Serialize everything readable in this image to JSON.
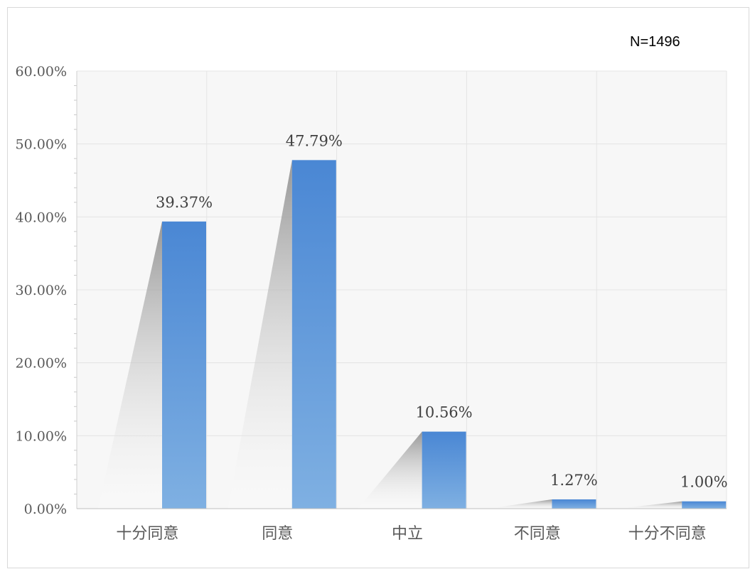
{
  "colors": {
    "bar_top": "#4a87d4",
    "bar_bottom": "#7fb0e2",
    "plot_background": "#f7f7f7",
    "grid": "#e4e4e4",
    "axis_text": "#595959",
    "label_text": "#404040"
  },
  "chart_data": {
    "type": "bar",
    "annotation": "N=1496",
    "categories": [
      "十分同意",
      "同意",
      "中立",
      "不同意",
      "十分不同意"
    ],
    "values": [
      39.37,
      47.79,
      10.56,
      1.27,
      1.0
    ],
    "data_labels": [
      "39.37%",
      "47.79%",
      "10.56%",
      "1.27%",
      "1.00%"
    ],
    "y_ticks": [
      "0.00%",
      "10.00%",
      "20.00%",
      "30.00%",
      "40.00%",
      "50.00%",
      "60.00%"
    ],
    "ylim": [
      0,
      60
    ],
    "grid": true,
    "legend": "none",
    "title": "",
    "xlabel": "",
    "ylabel": ""
  }
}
